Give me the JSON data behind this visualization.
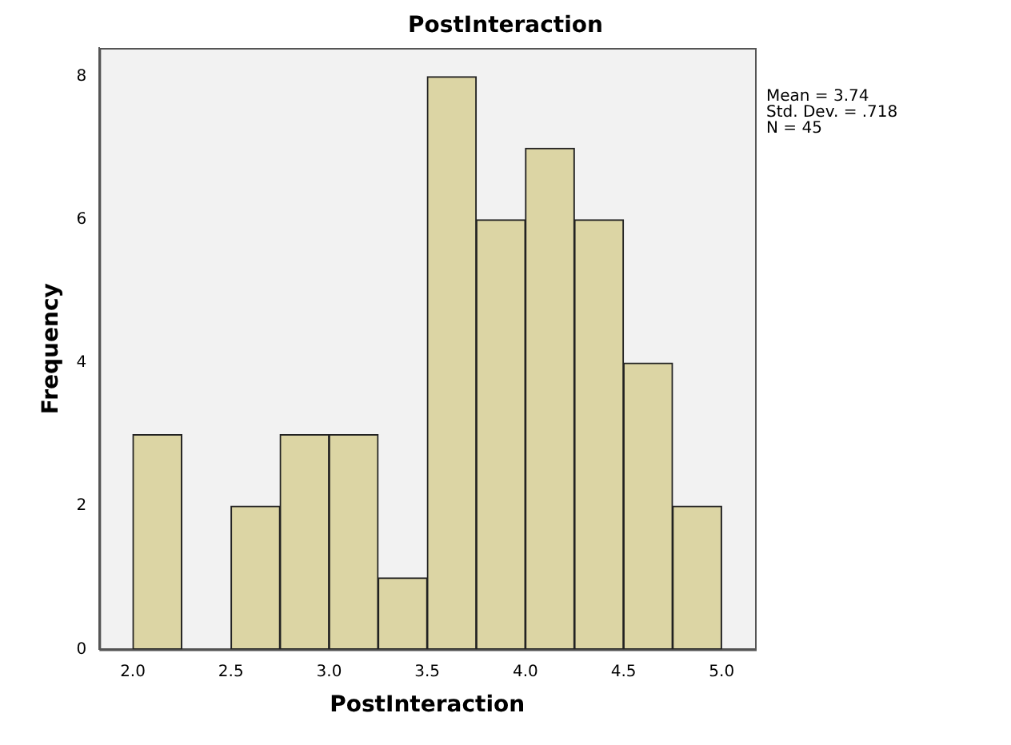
{
  "chart_data": {
    "type": "histogram",
    "title": "PostInteraction",
    "xlabel": "PostInteraction",
    "ylabel": "Frequency",
    "bins": [
      2.0,
      2.25,
      2.5,
      2.75,
      3.0,
      3.25,
      3.5,
      3.75,
      4.0,
      4.25,
      4.5,
      4.75,
      5.0
    ],
    "values": [
      3,
      0,
      2,
      3,
      3,
      1,
      8,
      6,
      7,
      6,
      4,
      2
    ],
    "color": "#dcd5a4",
    "xlim": [
      1.83,
      5.17
    ],
    "xticks": [
      {
        "value": 2,
        "label": "2.0"
      },
      {
        "value": 2.5,
        "label": "2.5"
      },
      {
        "value": 3,
        "label": "3.0"
      },
      {
        "value": 3.5,
        "label": "3.5"
      },
      {
        "value": 4,
        "label": "4.0"
      },
      {
        "value": 4.5,
        "label": "4.5"
      },
      {
        "value": 5,
        "label": "5.0"
      }
    ],
    "ylim": [
      0,
      8.4
    ],
    "yticks": [
      0,
      2,
      4,
      6,
      8
    ],
    "grid": false,
    "legend": false,
    "annotations": [
      "Mean = 3.74",
      "Std. Dev. = .718",
      "N = 45"
    ]
  }
}
